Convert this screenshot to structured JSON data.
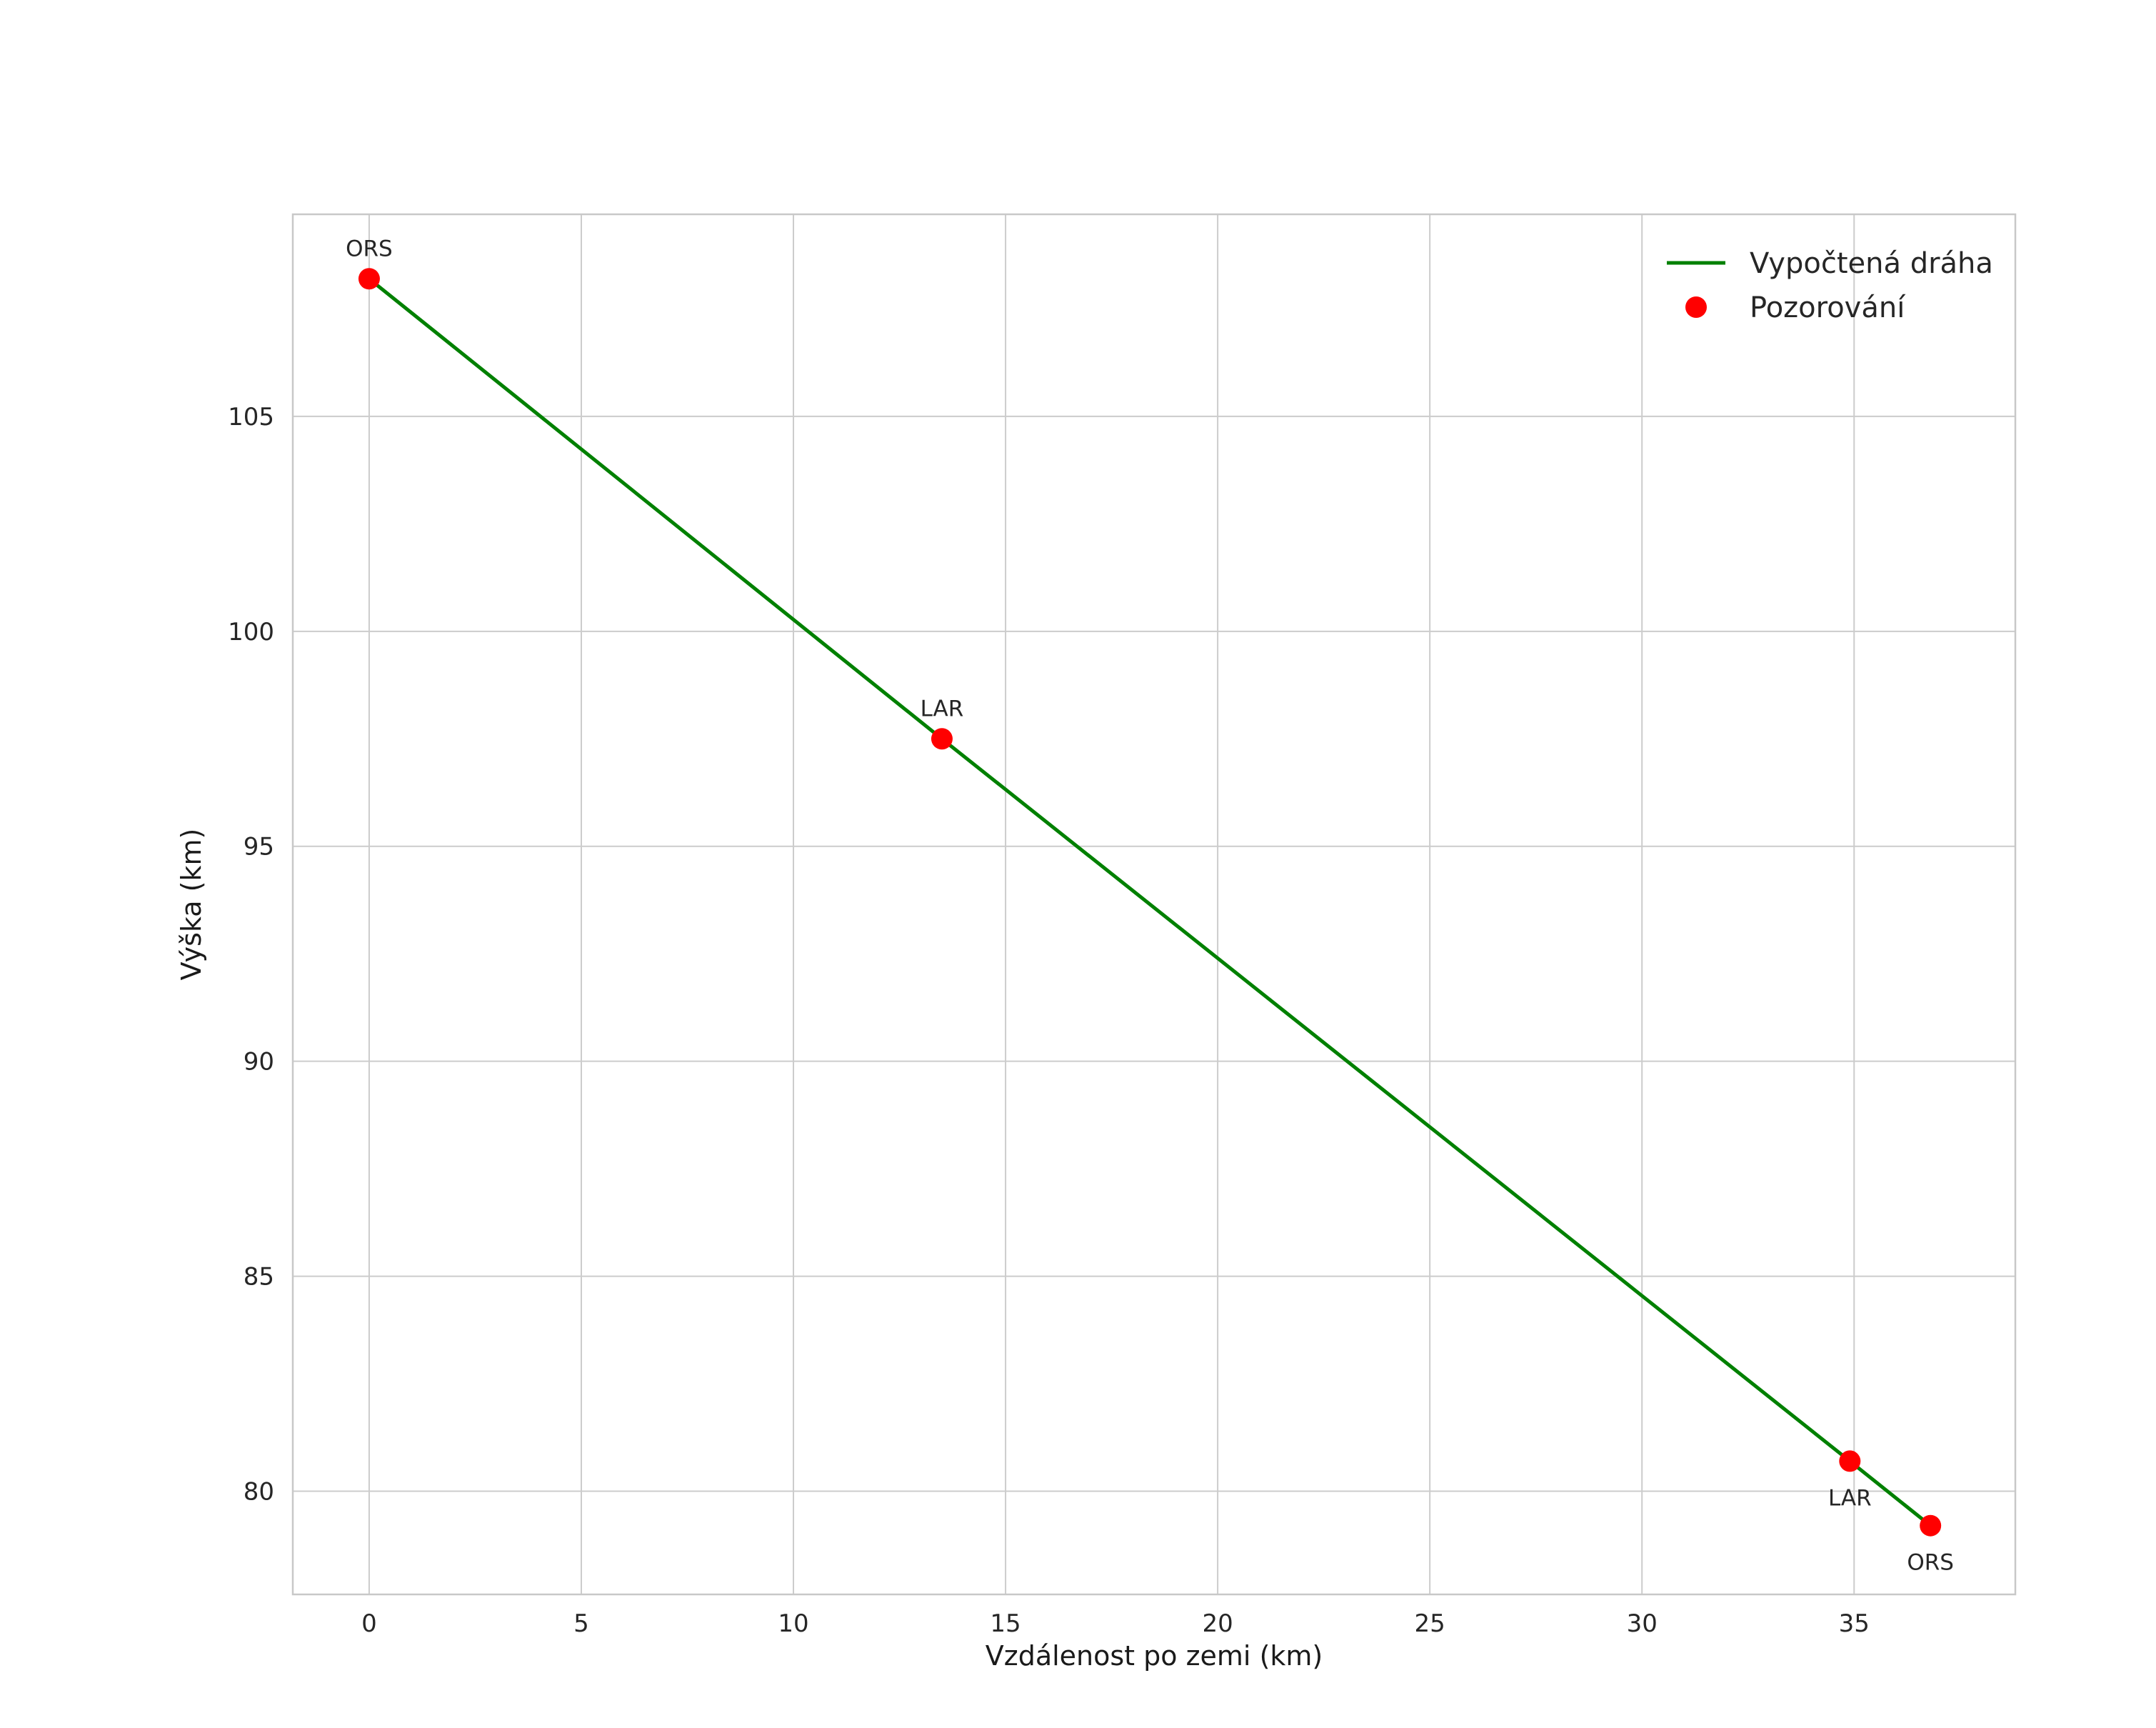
{
  "chart_data": {
    "type": "line",
    "title": "",
    "xlabel": "Vzdálenost po zemi (km)",
    "ylabel": "Výška (km)",
    "xlim": [
      -1.8,
      38.8
    ],
    "ylim": [
      77.6,
      109.7
    ],
    "xticks": [
      0,
      5,
      10,
      15,
      20,
      25,
      30,
      35
    ],
    "yticks": [
      80,
      85,
      90,
      95,
      100,
      105
    ],
    "grid": true,
    "colors": {
      "line": "#008000",
      "marker": "#ff0000",
      "grid": "#cccccc",
      "plot_border": "#c8c8c8",
      "text": "#262626",
      "background": "#ffffff"
    },
    "legend": {
      "position": "top-right",
      "entries": [
        {
          "label": "Vypočtená dráha",
          "type": "line",
          "color": "#008000"
        },
        {
          "label": "Pozorování",
          "type": "marker",
          "color": "#ff0000"
        }
      ]
    },
    "series": [
      {
        "name": "Vypočtená dráha",
        "type": "line",
        "color": "#008000",
        "points": [
          [
            0,
            108.2
          ],
          [
            13.5,
            97.5
          ],
          [
            34.9,
            80.7
          ],
          [
            36.8,
            79.2
          ]
        ]
      },
      {
        "name": "Pozorování",
        "type": "scatter",
        "color": "#ff0000",
        "points": [
          [
            0,
            108.2
          ],
          [
            13.5,
            97.5
          ],
          [
            34.9,
            80.7
          ],
          [
            36.8,
            79.2
          ]
        ],
        "point_labels": [
          {
            "text": "ORS",
            "position": "above"
          },
          {
            "text": "LAR",
            "position": "above"
          },
          {
            "text": "LAR",
            "position": "below"
          },
          {
            "text": "ORS",
            "position": "below"
          }
        ]
      }
    ]
  }
}
